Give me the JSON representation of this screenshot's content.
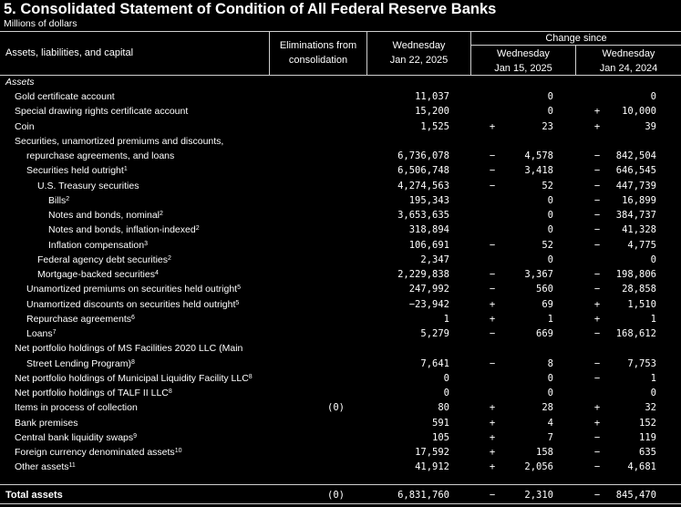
{
  "title": "5. Consolidated Statement of Condition of All Federal Reserve Banks",
  "subtitle": "Millions of dollars",
  "header": {
    "label_col": "Assets, liabilities, and capital",
    "elim_line1": "Eliminations from",
    "elim_line2": "consolidation",
    "wed_line1": "Wednesday",
    "wed_line2": "Jan 22, 2025",
    "change_since": "Change since",
    "c1_line1": "Wednesday",
    "c1_line2": "Jan 15, 2025",
    "c2_line1": "Wednesday",
    "c2_line2": "Jan 24, 2024"
  },
  "section": "Assets",
  "rows": [
    {
      "label": "Gold certificate account",
      "sup": "",
      "indent": 1,
      "elim": "",
      "wed": "11,037",
      "s1": "",
      "c1": "0",
      "s2": "",
      "c2": "0"
    },
    {
      "label": "Special drawing rights certificate account",
      "sup": "",
      "indent": 1,
      "elim": "",
      "wed": "15,200",
      "s1": "",
      "c1": "0",
      "s2": "+",
      "c2": "10,000"
    },
    {
      "label": "Coin",
      "sup": "",
      "indent": 1,
      "elim": "",
      "wed": "1,525",
      "s1": "+",
      "c1": "23",
      "s2": "+",
      "c2": "39"
    },
    {
      "label": "Securities, unamortized premiums and discounts,",
      "sup": "",
      "indent": 1,
      "elim": "",
      "wed": "",
      "s1": "",
      "c1": "",
      "s2": "",
      "c2": ""
    },
    {
      "label": "repurchase agreements, and loans",
      "sup": "",
      "indent": 2,
      "elim": "",
      "wed": "6,736,078",
      "s1": "−",
      "c1": "4,578",
      "s2": "−",
      "c2": "842,504"
    },
    {
      "label": "Securities held outright",
      "sup": "1",
      "indent": 2,
      "elim": "",
      "wed": "6,506,748",
      "s1": "−",
      "c1": "3,418",
      "s2": "−",
      "c2": "646,545"
    },
    {
      "label": "U.S. Treasury securities",
      "sup": "",
      "indent": 3,
      "elim": "",
      "wed": "4,274,563",
      "s1": "−",
      "c1": "52",
      "s2": "−",
      "c2": "447,739"
    },
    {
      "label": "Bills",
      "sup": "2",
      "indent": 4,
      "elim": "",
      "wed": "195,343",
      "s1": "",
      "c1": "0",
      "s2": "−",
      "c2": "16,899"
    },
    {
      "label": "Notes and bonds, nominal",
      "sup": "2",
      "indent": 4,
      "elim": "",
      "wed": "3,653,635",
      "s1": "",
      "c1": "0",
      "s2": "−",
      "c2": "384,737"
    },
    {
      "label": "Notes and bonds, inflation-indexed",
      "sup": "2",
      "indent": 4,
      "elim": "",
      "wed": "318,894",
      "s1": "",
      "c1": "0",
      "s2": "−",
      "c2": "41,328"
    },
    {
      "label": "Inflation compensation",
      "sup": "3",
      "indent": 4,
      "elim": "",
      "wed": "106,691",
      "s1": "−",
      "c1": "52",
      "s2": "−",
      "c2": "4,775"
    },
    {
      "label": "Federal agency debt securities",
      "sup": "2",
      "indent": 3,
      "elim": "",
      "wed": "2,347",
      "s1": "",
      "c1": "0",
      "s2": "",
      "c2": "0"
    },
    {
      "label": "Mortgage-backed securities",
      "sup": "4",
      "indent": 3,
      "elim": "",
      "wed": "2,229,838",
      "s1": "−",
      "c1": "3,367",
      "s2": "−",
      "c2": "198,806"
    },
    {
      "label": "Unamortized premiums on securities held outright",
      "sup": "5",
      "indent": 2,
      "elim": "",
      "wed": "247,992",
      "s1": "−",
      "c1": "560",
      "s2": "−",
      "c2": "28,858"
    },
    {
      "label": "Unamortized discounts on securities held outright",
      "sup": "5",
      "indent": 2,
      "elim": "",
      "wed": "−23,942",
      "s1": "+",
      "c1": "69",
      "s2": "+",
      "c2": "1,510"
    },
    {
      "label": "Repurchase agreements",
      "sup": "6",
      "indent": 2,
      "elim": "",
      "wed": "1",
      "s1": "+",
      "c1": "1",
      "s2": "+",
      "c2": "1"
    },
    {
      "label": "Loans",
      "sup": "7",
      "indent": 2,
      "elim": "",
      "wed": "5,279",
      "s1": "−",
      "c1": "669",
      "s2": "−",
      "c2": "168,612"
    },
    {
      "label": "Net portfolio holdings of MS Facilities 2020 LLC (Main",
      "sup": "",
      "indent": 1,
      "elim": "",
      "wed": "",
      "s1": "",
      "c1": "",
      "s2": "",
      "c2": ""
    },
    {
      "label": "Street Lending Program)",
      "sup": "8",
      "indent": 2,
      "elim": "",
      "wed": "7,641",
      "s1": "−",
      "c1": "8",
      "s2": "−",
      "c2": "7,753"
    },
    {
      "label": "Net portfolio holdings of Municipal Liquidity Facility LLC",
      "sup": "8",
      "indent": 1,
      "elim": "",
      "wed": "0",
      "s1": "",
      "c1": "0",
      "s2": "−",
      "c2": "1"
    },
    {
      "label": "Net portfolio holdings of TALF II LLC",
      "sup": "8",
      "indent": 1,
      "elim": "",
      "wed": "0",
      "s1": "",
      "c1": "0",
      "s2": "",
      "c2": "0"
    },
    {
      "label": "Items in process of collection",
      "sup": "",
      "indent": 1,
      "elim": "(0)",
      "wed": "80",
      "s1": "+",
      "c1": "28",
      "s2": "+",
      "c2": "32"
    },
    {
      "label": "Bank premises",
      "sup": "",
      "indent": 1,
      "elim": "",
      "wed": "591",
      "s1": "+",
      "c1": "4",
      "s2": "+",
      "c2": "152"
    },
    {
      "label": "Central bank liquidity swaps",
      "sup": "9",
      "indent": 1,
      "elim": "",
      "wed": "105",
      "s1": "+",
      "c1": "7",
      "s2": "−",
      "c2": "119"
    },
    {
      "label": "Foreign currency denominated assets",
      "sup": "10",
      "indent": 1,
      "elim": "",
      "wed": "17,592",
      "s1": "+",
      "c1": "158",
      "s2": "−",
      "c2": "635"
    },
    {
      "label": "Other assets",
      "sup": "11",
      "indent": 1,
      "elim": "",
      "wed": "41,912",
      "s1": "+",
      "c1": "2,056",
      "s2": "−",
      "c2": "4,681"
    }
  ],
  "total": {
    "label": "Total assets",
    "elim": "(0)",
    "wed": "6,831,760",
    "s1": "−",
    "c1": "2,310",
    "s2": "−",
    "c2": "845,470"
  }
}
